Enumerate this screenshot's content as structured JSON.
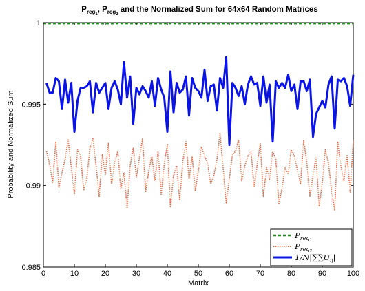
{
  "chart_data": {
    "type": "line",
    "title": {
      "p1": "P",
      "p1_sub": "reg",
      "p1_sub2": "1",
      "sep": ", ",
      "p2": "P",
      "p2_sub": "reg",
      "p2_sub2": "2",
      "rest": " and the Normalized Sum for 64x64 Random Matrices"
    },
    "xlabel": "Matrix",
    "ylabel": "Probability and Normalized Sum",
    "xlim": [
      0,
      100
    ],
    "ylim": [
      0.985,
      1.0
    ],
    "xticks": [
      0,
      10,
      20,
      30,
      40,
      50,
      60,
      70,
      80,
      90,
      100
    ],
    "yticks": [
      0.985,
      0.99,
      0.995,
      1.0
    ],
    "ytick_labels": [
      "0.985",
      "0.99",
      "0.995",
      "1"
    ],
    "grid": false,
    "legend_position": "bottom-right",
    "legend": {
      "preg1": {
        "base": "P",
        "sub": "reg",
        "subsub": "1"
      },
      "preg2": {
        "base": "P",
        "sub": "reg",
        "subsub": "2"
      },
      "sum": {
        "text": "1/N|∑∑U",
        "sub": "ij",
        "tail": "|"
      }
    },
    "colors": {
      "preg1": "#1a8a1a",
      "preg2": "#e0704a",
      "sum": "#0a14e6"
    },
    "series": [
      {
        "key": "preg1",
        "style": "dashed",
        "x": [
          0,
          100
        ],
        "values": [
          0.99995,
          0.99995
        ]
      },
      {
        "key": "preg2",
        "style": "dotted",
        "x": [
          1,
          2,
          3,
          4,
          5,
          6,
          7,
          8,
          9,
          10,
          11,
          12,
          13,
          14,
          15,
          16,
          17,
          18,
          19,
          20,
          21,
          22,
          23,
          24,
          25,
          26,
          27,
          28,
          29,
          30,
          31,
          32,
          33,
          34,
          35,
          36,
          37,
          38,
          39,
          40,
          41,
          42,
          43,
          44,
          45,
          46,
          47,
          48,
          49,
          50,
          51,
          52,
          53,
          54,
          55,
          56,
          57,
          58,
          59,
          60,
          61,
          62,
          63,
          64,
          65,
          66,
          67,
          68,
          69,
          70,
          71,
          72,
          73,
          74,
          75,
          76,
          77,
          78,
          79,
          80,
          81,
          82,
          83,
          84,
          85,
          86,
          87,
          88,
          89,
          90,
          91,
          92,
          93,
          94,
          95,
          96,
          97,
          98,
          99,
          100
        ],
        "values": [
          0.9921,
          0.9913,
          0.9902,
          0.9927,
          0.9899,
          0.9908,
          0.9916,
          0.9928,
          0.9911,
          0.9895,
          0.9922,
          0.9918,
          0.9897,
          0.9904,
          0.9923,
          0.9929,
          0.9912,
          0.9893,
          0.9919,
          0.9907,
          0.9926,
          0.9901,
          0.9914,
          0.9921,
          0.9898,
          0.9908,
          0.9886,
          0.9912,
          0.9923,
          0.9905,
          0.9917,
          0.9929,
          0.9896,
          0.9909,
          0.9918,
          0.9903,
          0.9921,
          0.9894,
          0.9913,
          0.9925,
          0.9887,
          0.9906,
          0.9912,
          0.9891,
          0.9915,
          0.9927,
          0.9904,
          0.9918,
          0.9897,
          0.9909,
          0.9924,
          0.9918,
          0.9914,
          0.9901,
          0.9906,
          0.9916,
          0.9932,
          0.9911,
          0.9889,
          0.9904,
          0.9919,
          0.9921,
          0.9928,
          0.9903,
          0.9912,
          0.9918,
          0.9921,
          0.9899,
          0.9913,
          0.9926,
          0.9893,
          0.9911,
          0.9904,
          0.9921,
          0.9916,
          0.9889,
          0.9898,
          0.9911,
          0.9907,
          0.9922,
          0.9918,
          0.9909,
          0.9901,
          0.9928,
          0.9914,
          0.9893,
          0.9906,
          0.9917,
          0.9887,
          0.9902,
          0.9922,
          0.9914,
          0.9896,
          0.9885,
          0.9927,
          0.9912,
          0.9903,
          0.9919,
          0.9896,
          0.9928
        ]
      },
      {
        "key": "sum",
        "style": "solid",
        "x": [
          1,
          2,
          3,
          4,
          5,
          6,
          7,
          8,
          9,
          10,
          11,
          12,
          13,
          14,
          15,
          16,
          17,
          18,
          19,
          20,
          21,
          22,
          23,
          24,
          25,
          26,
          27,
          28,
          29,
          30,
          31,
          32,
          33,
          34,
          35,
          36,
          37,
          38,
          39,
          40,
          41,
          42,
          43,
          44,
          45,
          46,
          47,
          48,
          49,
          50,
          51,
          52,
          53,
          54,
          55,
          56,
          57,
          58,
          59,
          60,
          61,
          62,
          63,
          64,
          65,
          66,
          67,
          68,
          69,
          70,
          71,
          72,
          73,
          74,
          75,
          76,
          77,
          78,
          79,
          80,
          81,
          82,
          83,
          84,
          85,
          86,
          87,
          88,
          89,
          90,
          91,
          92,
          93,
          94,
          95,
          96,
          97,
          98,
          99,
          100
        ],
        "values": [
          0.9963,
          0.9957,
          0.9957,
          0.9966,
          0.9964,
          0.9947,
          0.9965,
          0.9951,
          0.9963,
          0.9933,
          0.9952,
          0.996,
          0.996,
          0.9961,
          0.9964,
          0.9945,
          0.9963,
          0.9957,
          0.996,
          0.9963,
          0.9947,
          0.996,
          0.9964,
          0.9959,
          0.995,
          0.9976,
          0.9954,
          0.9967,
          0.9938,
          0.996,
          0.9956,
          0.9961,
          0.9958,
          0.9954,
          0.9964,
          0.9949,
          0.9966,
          0.9959,
          0.9954,
          0.9933,
          0.997,
          0.9945,
          0.9963,
          0.9957,
          0.9959,
          0.9967,
          0.9943,
          0.9966,
          0.996,
          0.9958,
          0.9954,
          0.9971,
          0.9952,
          0.9961,
          0.9962,
          0.9946,
          0.9966,
          0.996,
          0.9979,
          0.9925,
          0.9963,
          0.996,
          0.9955,
          0.9961,
          0.995,
          0.9962,
          0.9967,
          0.9962,
          0.9963,
          0.9949,
          0.9967,
          0.9951,
          0.9962,
          0.9927,
          0.9964,
          0.996,
          0.9963,
          0.996,
          0.9968,
          0.9958,
          0.9962,
          0.9947,
          0.9964,
          0.9964,
          0.9958,
          0.9965,
          0.993,
          0.9944,
          0.9948,
          0.9952,
          0.9948,
          0.9962,
          0.9967,
          0.9935,
          0.9965,
          0.9964,
          0.9966,
          0.9961,
          0.9949,
          0.9968
        ]
      }
    ]
  }
}
